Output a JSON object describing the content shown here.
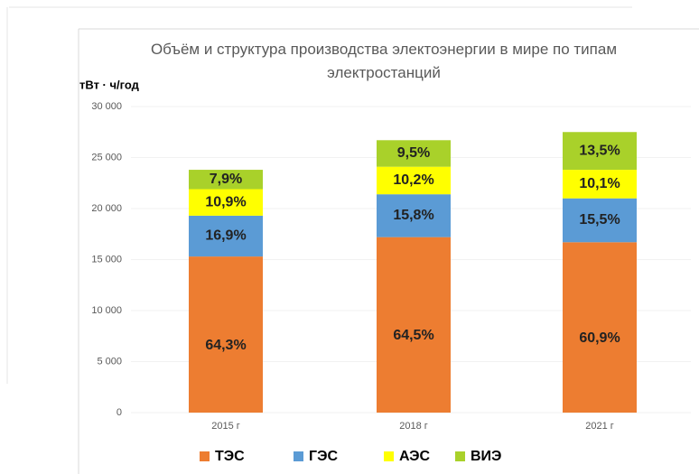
{
  "chart_data": {
    "type": "bar",
    "stacked": true,
    "title": "Объём и структура производства электоэнергии в мире по типам электростанций",
    "y_label": "тВт · ч/год",
    "categories": [
      "2015 г",
      "2018 г",
      "2021 г"
    ],
    "series": [
      {
        "name": "ТЭС",
        "color": "#ed7d31",
        "values": [
          15300,
          17200,
          16700
        ],
        "share_labels": [
          "64,3%",
          "64,5%",
          "60,9%"
        ]
      },
      {
        "name": "ГЭС",
        "color": "#5b9bd5",
        "values": [
          4000,
          4200,
          4300
        ],
        "share_labels": [
          "16,9%",
          "15,8%",
          "15,5%"
        ]
      },
      {
        "name": "АЭС",
        "color": "#ffff00",
        "values": [
          2600,
          2700,
          2800
        ],
        "share_labels": [
          "10,9%",
          "10,2%",
          "10,1%"
        ]
      },
      {
        "name": "ВИЭ",
        "color": "#a9d12a",
        "values": [
          1900,
          2600,
          3700
        ],
        "share_labels": [
          "7,9%",
          "9,5%",
          "13,5%"
        ]
      }
    ],
    "ylim": [
      0,
      30000
    ],
    "yticks": [
      0,
      {
        "value": 5000,
        "label": "5 000"
      },
      {
        "value": 10000,
        "label": "10 000"
      },
      {
        "value": 15000,
        "label": "15 000"
      },
      {
        "value": 20000,
        "label": "20 000"
      },
      {
        "value": 25000,
        "label": "25 000"
      },
      {
        "value": 30000,
        "label": "30 000"
      }
    ],
    "legend": "bottom"
  }
}
